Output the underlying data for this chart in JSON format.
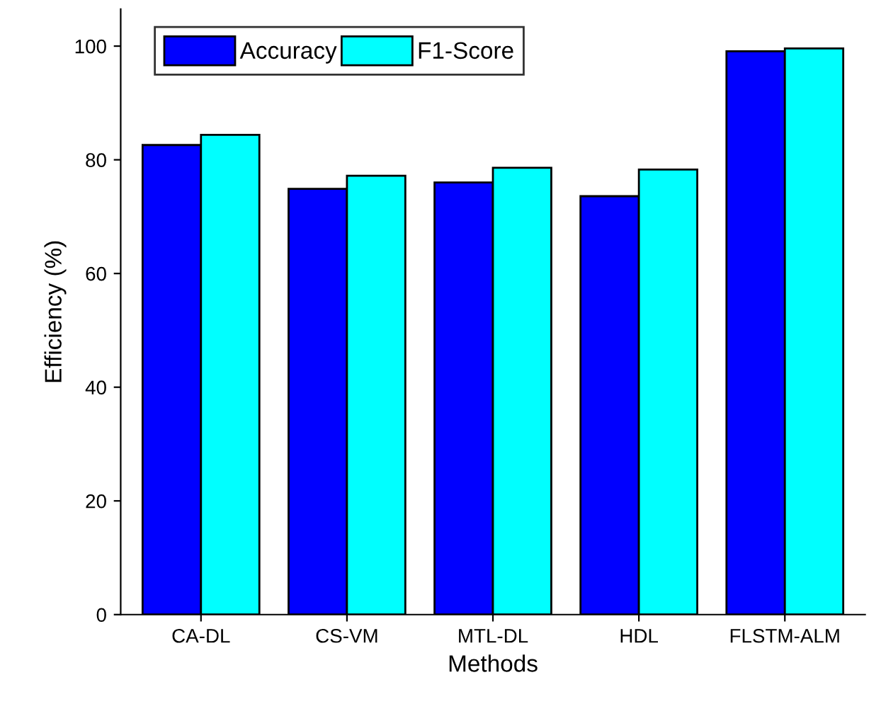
{
  "chart_data": {
    "type": "bar",
    "xlabel": "Methods",
    "ylabel": "Efficiency (%)",
    "categories": [
      "CA-DL",
      "CS-VM",
      "MTL-DL",
      "HDL",
      "FLSTM-ALM"
    ],
    "series": [
      {
        "name": "Accuracy",
        "color": "#0000ff",
        "values": [
          82.6,
          74.9,
          76.0,
          73.6,
          99.1
        ]
      },
      {
        "name": "F1-Score",
        "color": "#00ffff",
        "values": [
          84.4,
          77.2,
          78.6,
          78.3,
          99.6
        ]
      }
    ],
    "ylim": [
      0,
      106.5
    ],
    "yticks": [
      0,
      20,
      40,
      60,
      80,
      100
    ],
    "grid": false,
    "legend": "top left"
  }
}
